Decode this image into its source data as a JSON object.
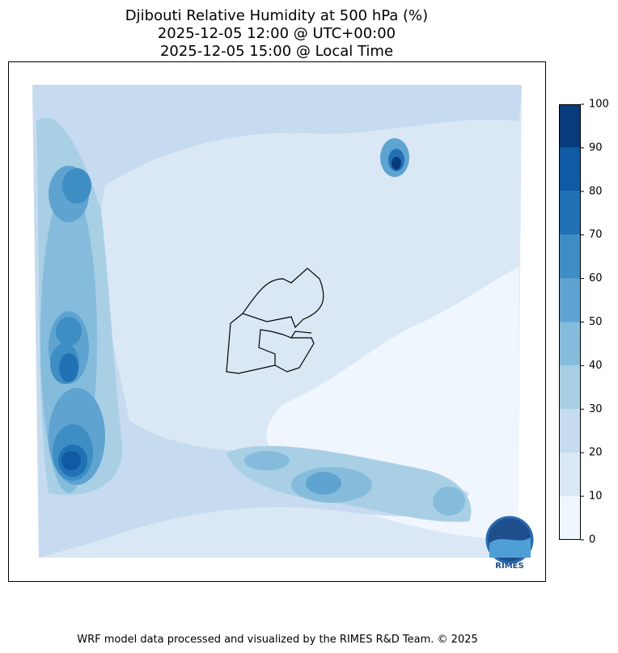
{
  "title": [
    "Djibouti Relative Humidity at 500 hPa (%)",
    "2025-12-05 12:00 @ UTC+00:00",
    "2025-12-05 15:00 @ Local Time"
  ],
  "colorbar": {
    "levels": [
      0,
      10,
      20,
      30,
      40,
      50,
      60,
      70,
      80,
      90,
      100
    ],
    "colors": [
      "#f0f6fd",
      "#dae8f5",
      "#c6dbef",
      "#a9cfe5",
      "#85bcdc",
      "#5fa3d1",
      "#3e8ec4",
      "#2171b5",
      "#1059a3",
      "#083b7c"
    ]
  },
  "logo": "RIMES",
  "footer": "WRF model data processed and visualized by the RIMES R&D Team. © 2025"
}
